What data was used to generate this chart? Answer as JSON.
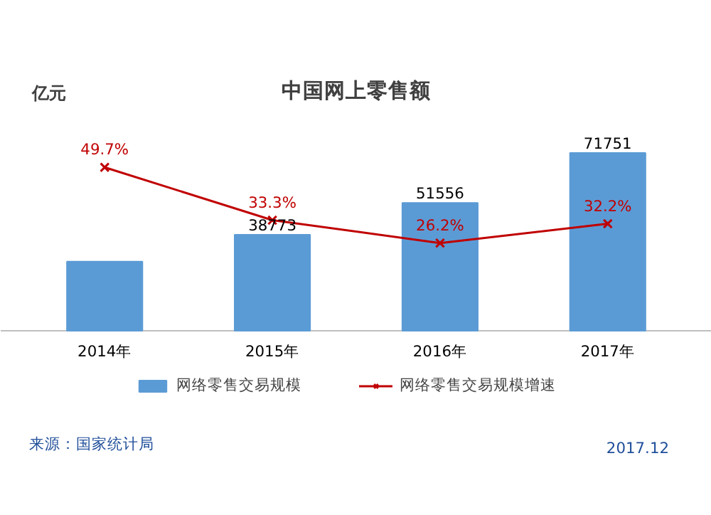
{
  "chart_data": {
    "type": "bar",
    "title": "中国网上零售额",
    "ylabel": "亿元",
    "categories": [
      "2014年",
      "2015年",
      "2016年",
      "2017年"
    ],
    "series": [
      {
        "name": "网络零售交易规模",
        "color": "#5b9bd5",
        "values": [
          27898,
          38773,
          51556,
          71751
        ],
        "value_labels": [
          null,
          "38773",
          "51556",
          "71751"
        ]
      },
      {
        "name": "网络零售交易规模增速",
        "type": "line",
        "axis": "y2",
        "color": "#c00000",
        "marker": "cross",
        "values": [
          49.7,
          33.3,
          26.2,
          32.2
        ],
        "value_labels": [
          "49.7%",
          "33.3%",
          "26.2%",
          "32.2%"
        ]
      }
    ],
    "legend": "bottom",
    "grid": false,
    "tick_labels": "x",
    "annotations": [
      "来源：国家统计局",
      "2017.12"
    ]
  }
}
